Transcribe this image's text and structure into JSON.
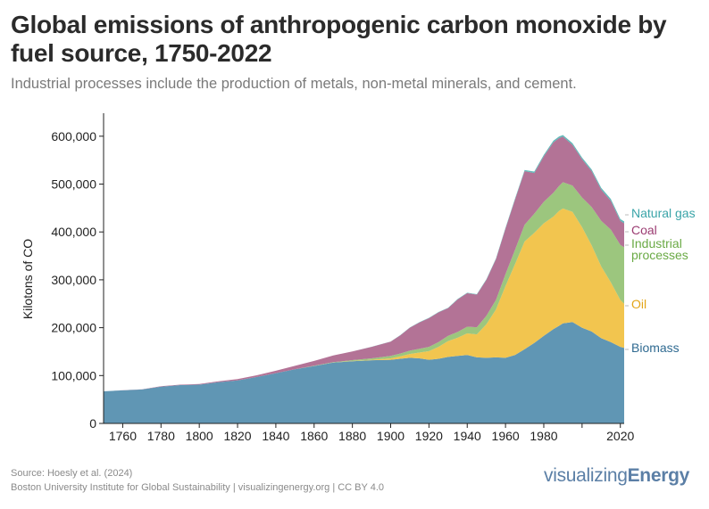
{
  "header": {
    "title": "Global emissions of anthropogenic carbon monoxide by fuel source, 1750-2022",
    "subtitle": "Industrial processes include the production of metals, non-metal minerals, and cement."
  },
  "footer": {
    "source_line": "Source: Hoesly et al. (2024)",
    "credit_line": "Boston University Institute for Global Sustainability | visualizingenergy.org | CC BY 4.0",
    "brand_light": "visualizing",
    "brand_bold": "Energy"
  },
  "chart_data": {
    "type": "area",
    "stacked": true,
    "title": "Global emissions of anthropogenic carbon monoxide by fuel source, 1750-2022",
    "xlabel": "",
    "ylabel": "Kilotons of CO",
    "xlim": [
      1750,
      2022
    ],
    "ylim": [
      0,
      650000
    ],
    "grid": false,
    "x_ticks": [
      1760,
      1780,
      1800,
      1820,
      1840,
      1860,
      1880,
      1900,
      1920,
      1940,
      1960,
      1980,
      2000,
      2020
    ],
    "x_tick_labels": [
      "1760",
      "1780",
      "1800",
      "1820",
      "1840",
      "1860",
      "1880",
      "1900",
      "1920",
      "1940",
      "1960",
      "1980",
      "",
      "2020"
    ],
    "y_ticks": [
      0,
      100000,
      200000,
      300000,
      400000,
      500000,
      600000
    ],
    "y_tick_labels": [
      "0",
      "100,000",
      "200,000",
      "300,000",
      "400,000",
      "500,000",
      "600,000"
    ],
    "legend_placement": "right-inline-labels",
    "x": [
      1750,
      1760,
      1770,
      1780,
      1790,
      1800,
      1810,
      1820,
      1830,
      1840,
      1850,
      1860,
      1870,
      1880,
      1890,
      1900,
      1905,
      1910,
      1915,
      1920,
      1925,
      1930,
      1935,
      1940,
      1945,
      1950,
      1955,
      1960,
      1965,
      1970,
      1975,
      1980,
      1985,
      1988,
      1990,
      1995,
      2000,
      2005,
      2010,
      2015,
      2020,
      2022
    ],
    "series": [
      {
        "name": "Biomass",
        "color": "#6096b4",
        "values": [
          67000,
          69000,
          71000,
          77000,
          80000,
          81000,
          86000,
          90000,
          97000,
          105000,
          113000,
          120000,
          127000,
          130000,
          132000,
          133000,
          135000,
          137000,
          136000,
          133000,
          135000,
          139000,
          141000,
          143000,
          138000,
          137000,
          138000,
          137000,
          143000,
          155000,
          168000,
          183000,
          197000,
          204000,
          209000,
          212000,
          200000,
          192000,
          178000,
          170000,
          160000,
          158000
        ]
      },
      {
        "name": "Oil",
        "color": "#f2c54f",
        "values": [
          0,
          0,
          0,
          0,
          0,
          0,
          0,
          0,
          0,
          0,
          0,
          0,
          0,
          300,
          1000,
          3000,
          5000,
          8000,
          12000,
          18000,
          25000,
          33000,
          38000,
          45000,
          48000,
          70000,
          100000,
          150000,
          190000,
          225000,
          230000,
          235000,
          235000,
          240000,
          240000,
          230000,
          210000,
          180000,
          150000,
          125000,
          98000,
          92000
        ]
      },
      {
        "name": "Industrial processes",
        "color": "#9cc67e",
        "values": [
          0,
          0,
          0,
          0,
          0,
          0,
          0,
          0,
          0,
          0,
          300,
          600,
          1000,
          2000,
          3000,
          5000,
          6000,
          7000,
          8000,
          9000,
          10000,
          11000,
          12000,
          14000,
          15000,
          18000,
          20000,
          25000,
          30000,
          35000,
          40000,
          45000,
          50000,
          52000,
          55000,
          55000,
          62000,
          80000,
          95000,
          110000,
          115000,
          118000
        ]
      },
      {
        "name": "Coal",
        "color": "#b37396",
        "values": [
          0,
          200,
          400,
          700,
          1000,
          1500,
          2000,
          2500,
          3500,
          5000,
          7000,
          10000,
          14000,
          18000,
          24000,
          30000,
          38000,
          48000,
          55000,
          60000,
          62000,
          58000,
          68000,
          70000,
          68000,
          75000,
          85000,
          95000,
          105000,
          112000,
          85000,
          95000,
          105000,
          100000,
          95000,
          85000,
          80000,
          75000,
          65000,
          60000,
          50000,
          50000
        ]
      },
      {
        "name": "Natural gas",
        "color": "#5fb8b8",
        "values": [
          0,
          0,
          0,
          0,
          0,
          0,
          0,
          0,
          0,
          0,
          0,
          0,
          0,
          0,
          100,
          200,
          300,
          400,
          500,
          600,
          700,
          800,
          900,
          1000,
          1000,
          1200,
          1500,
          1800,
          2000,
          2500,
          3000,
          3000,
          3500,
          3500,
          3500,
          3500,
          3500,
          3500,
          4000,
          4000,
          4000,
          4000
        ]
      }
    ],
    "labels": [
      {
        "series": "Natural gas",
        "text": "Natural gas",
        "color": "#3aa4a8"
      },
      {
        "series": "Coal",
        "text": "Coal",
        "color": "#9b3c72"
      },
      {
        "series": "Industrial processes",
        "text": "Industrial processes",
        "lines": [
          "Industrial",
          "processes"
        ],
        "color": "#6aaa45"
      },
      {
        "series": "Oil",
        "text": "Oil",
        "color": "#e3a517"
      },
      {
        "series": "Biomass",
        "text": "Biomass",
        "color": "#2f6a91"
      }
    ]
  }
}
